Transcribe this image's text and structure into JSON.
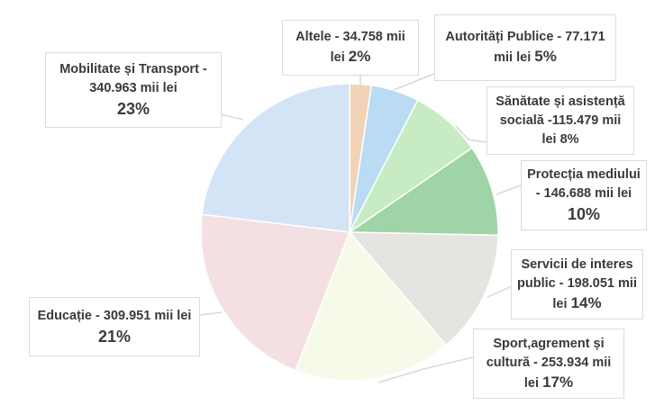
{
  "chart_data": {
    "type": "pie",
    "title": "",
    "unit": "mii lei",
    "start_angle_deg": 0,
    "direction": "clockwise",
    "center": [
      388,
      258
    ],
    "radius": 165,
    "slices": [
      {
        "name": "Altele",
        "value": 34758,
        "value_label": "34.758",
        "percent": 2,
        "color": "#f2d3b8"
      },
      {
        "name": "Autorități Publice",
        "value": 77171,
        "value_label": "77.171",
        "percent": 5,
        "color": "#b9dbf3"
      },
      {
        "name": "Sănătate și asistență socială",
        "value": 115479,
        "value_label": "115.479",
        "percent": 8,
        "color": "#c7ecc4"
      },
      {
        "name": "Protecția mediului",
        "value": 146688,
        "value_label": "146.688",
        "percent": 10,
        "color": "#9fd4a6"
      },
      {
        "name": "Servicii de interes public",
        "value": 198051,
        "value_label": "198.051",
        "percent": 14,
        "color": "#e5e4e1"
      },
      {
        "name": "Sport,agrement și cultură",
        "value": 253934,
        "value_label": "253.934",
        "percent": 17,
        "color": "#f6fbe9"
      },
      {
        "name": "Educație",
        "value": 309951,
        "value_label": "309.951",
        "percent": 21,
        "color": "#f4e0e2"
      },
      {
        "name": "Mobilitate și Transport",
        "value": 340963,
        "value_label": "340.963",
        "percent": 23,
        "color": "#d3e4f6"
      }
    ]
  },
  "labels": {
    "altele": {
      "line1": "Altele - 34.758 mii",
      "line2": "lei",
      "pct": "2%"
    },
    "autoritati": {
      "line1": "Autorități Publice - 77.171",
      "line2": "mii lei",
      "pct": "5%"
    },
    "sanatate": {
      "line1": "Sănătate și asistență",
      "line2": "socială -115.479 mii",
      "line3": "lei",
      "pct": "8%"
    },
    "protectia": {
      "line1": "Protecția mediului",
      "line2": "- 146.688 mii lei",
      "pct": "10%"
    },
    "servicii": {
      "line1": "Servicii de interes",
      "line2": "public - 198.051 mii",
      "line3": "lei",
      "pct": "14%"
    },
    "sport": {
      "line1": "Sport,agrement și",
      "line2": "cultură - 253.934 mii",
      "line3": "lei",
      "pct": "17%"
    },
    "educatie": {
      "line1": "Educație - 309.951 mii lei",
      "pct": "21%"
    },
    "mobilitate": {
      "line1": "Mobilitate și Transport -",
      "line2": "340.963 mii lei",
      "pct": "23%"
    }
  },
  "colors": {
    "leader_line": "#d8d8d8",
    "box_border": "#dcdcdc",
    "text": "#3a3a3a"
  }
}
